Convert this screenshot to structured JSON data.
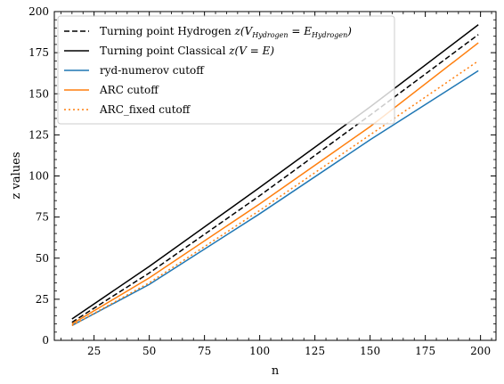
{
  "chart_data": {
    "type": "line",
    "xlabel": "n",
    "ylabel": "z values",
    "xlim": [
      7,
      207
    ],
    "ylim": [
      0,
      200
    ],
    "xticks": [
      25,
      50,
      75,
      100,
      125,
      150,
      175,
      200
    ],
    "yticks": [
      0,
      25,
      50,
      75,
      100,
      125,
      150,
      175,
      200
    ],
    "grid": false,
    "legend_placement": "upper-left",
    "series": [
      {
        "name": "Turning point Hydrogen z(V_Hydrogen = E_Hydrogen)",
        "name_parts": {
          "pre": "Turning point Hydrogen ",
          "math1": "z(V",
          "sub1": "Hydrogen",
          "math2": " = E",
          "sub2": "Hydrogen",
          "math3": ")"
        },
        "color": "#000000",
        "style": "dashed",
        "x": [
          15,
          50,
          100,
          150,
          199
        ],
        "y": [
          11,
          41,
          88,
          137,
          186
        ]
      },
      {
        "name": "Turning point Classical z(V = E)",
        "name_parts": {
          "pre": "Turning point Classical ",
          "math1": "z(V = E)"
        },
        "color": "#000000",
        "style": "solid",
        "x": [
          15,
          50,
          100,
          150,
          199
        ],
        "y": [
          13,
          45,
          93,
          142,
          192
        ]
      },
      {
        "name": "ryd-numerov cutoff",
        "color": "#1f77b4",
        "style": "solid",
        "x": [
          15,
          50,
          100,
          150,
          199
        ],
        "y": [
          9,
          34,
          77,
          122,
          164
        ]
      },
      {
        "name": "ARC cutoff",
        "color": "#ff7f0e",
        "style": "solid",
        "x": [
          15,
          50,
          100,
          150,
          199
        ],
        "y": [
          10,
          38,
          83,
          130,
          181
        ]
      },
      {
        "name": "ARC_fixed cutoff",
        "color": "#ff7f0e",
        "style": "dotted",
        "x": [
          15,
          50,
          100,
          150,
          199
        ],
        "y": [
          9,
          35,
          79,
          125,
          170
        ]
      }
    ]
  }
}
